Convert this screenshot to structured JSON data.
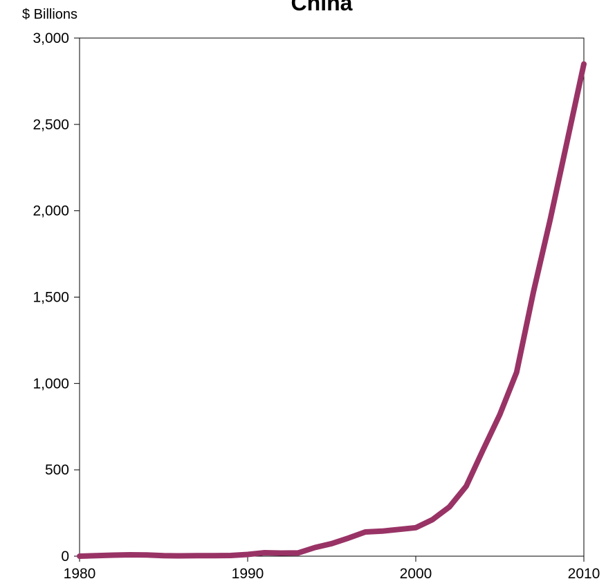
{
  "chart_data": {
    "type": "line",
    "title": "China",
    "unit_label": "$ Billions",
    "xlabel": "",
    "ylabel": "",
    "xlim": [
      1980,
      2010
    ],
    "ylim": [
      0,
      3000
    ],
    "x_ticks": [
      "1980",
      "1990",
      "2000",
      "2010"
    ],
    "y_ticks": [
      "0",
      "500",
      "1,000",
      "1,500",
      "2,000",
      "2,500",
      "3,000"
    ],
    "grid": false,
    "line_color": "#993366",
    "series": [
      {
        "x": [
          1980,
          1981,
          1982,
          1983,
          1984,
          1985,
          1986,
          1987,
          1988,
          1989,
          1990,
          1991,
          1992,
          1993,
          1994,
          1995,
          1996,
          1997,
          1998,
          1999,
          2000,
          2001,
          2002,
          2003,
          2004,
          2005,
          2006,
          2007,
          2008,
          2009,
          2010
        ],
        "values": [
          0,
          3,
          6,
          8,
          7,
          3,
          2,
          3,
          3,
          4,
          10,
          20,
          18,
          19,
          50,
          73,
          105,
          140,
          145,
          155,
          165,
          212,
          285,
          405,
          615,
          820,
          1065,
          1530,
          1950,
          2400,
          2850
        ]
      }
    ]
  }
}
